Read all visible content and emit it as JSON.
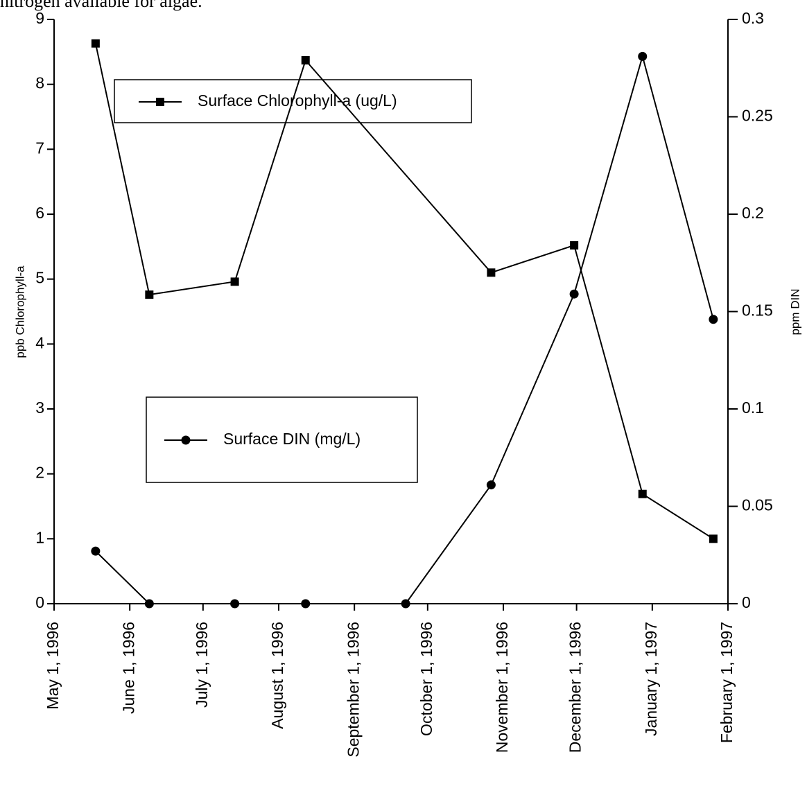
{
  "caption": "nitrogen available for algae.",
  "chart_data": {
    "type": "line",
    "ylabel": "ppb Chlorophyll-a",
    "y2label": "ppm DIN",
    "xlim": [
      "1996-05-01",
      "1997-02-01"
    ],
    "xticks": [
      {
        "value": "1996-05-01",
        "label": "May 1, 1996"
      },
      {
        "value": "1996-06-01",
        "label": "June 1, 1996"
      },
      {
        "value": "1996-07-01",
        "label": "July 1, 1996"
      },
      {
        "value": "1996-08-01",
        "label": "August 1, 1996"
      },
      {
        "value": "1996-09-01",
        "label": "September 1, 1996"
      },
      {
        "value": "1996-10-01",
        "label": "October 1, 1996"
      },
      {
        "value": "1996-11-01",
        "label": "November 1, 1996"
      },
      {
        "value": "1996-12-01",
        "label": "December 1, 1996"
      },
      {
        "value": "1997-01-01",
        "label": "January 1, 1997"
      },
      {
        "value": "1997-02-01",
        "label": "February 1, 1997"
      }
    ],
    "ylim": [
      0,
      9
    ],
    "yticks": [
      0,
      1,
      2,
      3,
      4,
      5,
      6,
      7,
      8,
      9
    ],
    "y2lim": [
      0,
      0.3
    ],
    "y2ticks": [
      0,
      0.05,
      0.1,
      0.15,
      0.2,
      0.25,
      0.3
    ],
    "series": [
      {
        "name": "Surface Chlorophyll-a (ug/L)",
        "color": "#000000",
        "marker": "square",
        "x": [
          "1996-05-18",
          "1996-06-09",
          "1996-07-14",
          "1996-08-12",
          "1996-10-27",
          "1996-11-30",
          "1996-12-28",
          "1997-01-26"
        ],
        "values": [
          8.63,
          4.76,
          4.96,
          8.37,
          5.1,
          5.52,
          1.69,
          1.0
        ]
      },
      {
        "name": "Surface DIN (mg/L)",
        "color": "#000000",
        "marker": "circle",
        "axis": "y2",
        "x": [
          "1996-05-18",
          "1996-06-09",
          "1996-07-14",
          "1996-08-12",
          "1996-09-22",
          "1996-10-27",
          "1996-11-30",
          "1996-12-28",
          "1997-01-26"
        ],
        "values": [
          0.027,
          0,
          0,
          0,
          0,
          0.061,
          0.159,
          0.281,
          0.146
        ]
      }
    ]
  }
}
